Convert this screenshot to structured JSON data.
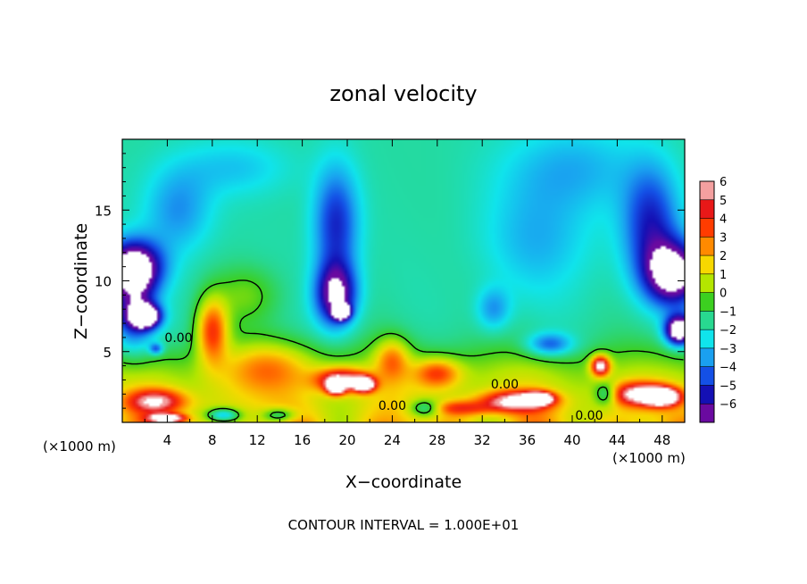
{
  "chart_data": {
    "type": "heatmap",
    "title": "zonal velocity",
    "xlabel": "X−coordinate",
    "ylabel": "Z−coordinate",
    "x_unit_label_left": "(×1000 m)",
    "x_unit_label_right": "(×1000 m)",
    "x_range": [
      0,
      50
    ],
    "y_range": [
      0,
      20
    ],
    "x_ticks": [
      4,
      8,
      12,
      16,
      20,
      24,
      28,
      32,
      36,
      40,
      44,
      48
    ],
    "x_tick_labels": [
      "4",
      "8",
      "12",
      "16",
      "20",
      "24",
      "28",
      "32",
      "36",
      "40",
      "44",
      "48"
    ],
    "y_ticks": [
      5,
      10,
      15
    ],
    "y_tick_labels": [
      "5",
      "10",
      "15"
    ],
    "colorbar": {
      "min": -6,
      "max": 6,
      "levels": [
        6,
        5,
        4,
        3,
        2,
        1,
        0,
        -1,
        -2,
        -3,
        -4,
        -5,
        -6
      ],
      "labels": [
        "6",
        "5",
        "4",
        "3",
        "2",
        "1",
        "0",
        "−1",
        "−2",
        "−3",
        "−4",
        "−5",
        "−6"
      ],
      "colors": [
        "#f4a0a0",
        "#e81818",
        "#ff3c00",
        "#ff8a00",
        "#f7d800",
        "#b4e600",
        "#3ccf20",
        "#28d890",
        "#10e4ec",
        "#1aa0f0",
        "#1450e6",
        "#1410b4",
        "#6a0aa0"
      ]
    },
    "contour_labels": [
      "0.00",
      "0.00",
      "0.00",
      "0.00"
    ],
    "contour_label_positions": [
      [
        5,
        6
      ],
      [
        24,
        1.2
      ],
      [
        34,
        2.7
      ],
      [
        41.5,
        0.5
      ]
    ],
    "blobs": [
      {
        "x": 1,
        "y": 11,
        "v": -6.5,
        "sx": 2.5,
        "sy": 1.8
      },
      {
        "x": 1,
        "y": 8,
        "v": -4,
        "sx": 2,
        "sy": 3
      },
      {
        "x": 2,
        "y": 7.5,
        "v": -8,
        "sx": 1.3,
        "sy": 0.8
      },
      {
        "x": 19,
        "y": 9,
        "v": -5.5,
        "sx": 1.8,
        "sy": 2.2
      },
      {
        "x": 19,
        "y": 14,
        "v": -3.5,
        "sx": 2,
        "sy": 4
      },
      {
        "x": 19.5,
        "y": 7.8,
        "v": -8,
        "sx": 0.7,
        "sy": 0.5
      },
      {
        "x": 49,
        "y": 10.5,
        "v": -6.5,
        "sx": 2.5,
        "sy": 2.2
      },
      {
        "x": 47,
        "y": 14,
        "v": -3.5,
        "sx": 2.5,
        "sy": 4
      },
      {
        "x": 49.5,
        "y": 6.5,
        "v": -8,
        "sx": 1.2,
        "sy": 1
      },
      {
        "x": 5,
        "y": 15,
        "v": -2,
        "sx": 3,
        "sy": 3
      },
      {
        "x": 33,
        "y": 8,
        "v": -2,
        "sx": 1.5,
        "sy": 1.5
      },
      {
        "x": 38,
        "y": 5.5,
        "v": -3,
        "sx": 2,
        "sy": 0.8
      },
      {
        "x": 37,
        "y": 13,
        "v": -1.5,
        "sx": 5,
        "sy": 4
      },
      {
        "x": 40,
        "y": 18,
        "v": -1.5,
        "sx": 6,
        "sy": 3
      },
      {
        "x": 10,
        "y": 18,
        "v": -1.2,
        "sx": 5,
        "sy": 2
      },
      {
        "x": 8,
        "y": 6.5,
        "v": 5,
        "sx": 1.4,
        "sy": 2.2
      },
      {
        "x": 11,
        "y": 9,
        "v": 1.5,
        "sx": 3,
        "sy": 2
      },
      {
        "x": 13,
        "y": 4,
        "v": 2.5,
        "sx": 4,
        "sy": 1.8
      },
      {
        "x": 19.5,
        "y": 3,
        "v": 6,
        "sx": 2.2,
        "sy": 0.8
      },
      {
        "x": 21.5,
        "y": 2.7,
        "v": 9,
        "sx": 0.9,
        "sy": 0.5
      },
      {
        "x": 19,
        "y": 2.5,
        "v": 8,
        "sx": 0.8,
        "sy": 0.5
      },
      {
        "x": 24,
        "y": 4.5,
        "v": 3,
        "sx": 1.5,
        "sy": 1.5
      },
      {
        "x": 28,
        "y": 3.5,
        "v": 3.5,
        "sx": 2,
        "sy": 1
      },
      {
        "x": 35,
        "y": 1.5,
        "v": 6,
        "sx": 3,
        "sy": 0.7
      },
      {
        "x": 37,
        "y": 1.7,
        "v": 8.5,
        "sx": 1.2,
        "sy": 0.4
      },
      {
        "x": 42.5,
        "y": 4,
        "v": 7,
        "sx": 0.8,
        "sy": 0.7
      },
      {
        "x": 46,
        "y": 2,
        "v": 6,
        "sx": 2.5,
        "sy": 0.8
      },
      {
        "x": 48,
        "y": 1.8,
        "v": 8.5,
        "sx": 1.5,
        "sy": 0.6
      },
      {
        "x": 3,
        "y": 1.5,
        "v": 5,
        "sx": 2.5,
        "sy": 0.8
      },
      {
        "x": 4,
        "y": 0.3,
        "v": 8,
        "sx": 1.5,
        "sy": 0.3
      },
      {
        "x": 9,
        "y": 0.5,
        "v": -4,
        "sx": 1.5,
        "sy": 0.5
      },
      {
        "x": 14,
        "y": 0.5,
        "v": -3,
        "sx": 1.5,
        "sy": 0.5
      },
      {
        "x": 27,
        "y": 1,
        "v": -3.5,
        "sx": 1.5,
        "sy": 0.6
      },
      {
        "x": 43,
        "y": 2,
        "v": -3,
        "sx": 1,
        "sy": 0.8
      },
      {
        "x": 3,
        "y": 5.2,
        "v": -3,
        "sx": 0.6,
        "sy": 0.4
      },
      {
        "x": 30,
        "y": 1,
        "v": 3,
        "sx": 3,
        "sy": 0.5
      }
    ],
    "base_field": {
      "surface": 1.3,
      "low_above": -1.2,
      "low_below": 1.5,
      "transition": 4.5
    }
  },
  "footer": {
    "contour_interval": "CONTOUR INTERVAL = 1.000E+01"
  }
}
